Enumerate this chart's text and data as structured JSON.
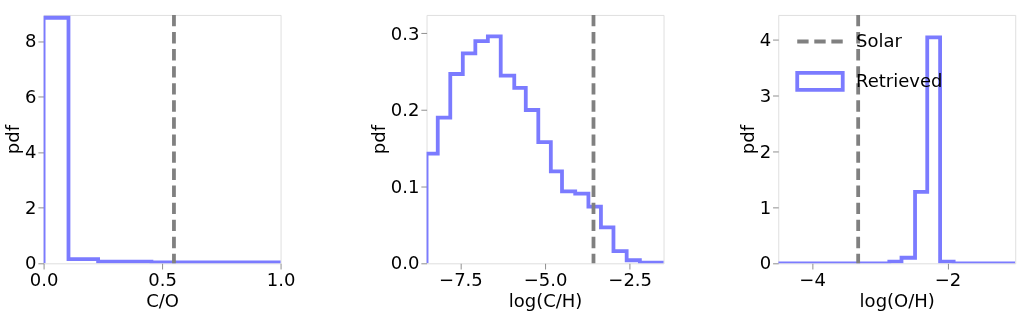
{
  "chart_data": [
    {
      "type": "histogram",
      "xlabel": "C/O",
      "ylabel": "pdf",
      "bins": [
        0,
        0.105,
        0.23,
        0.455,
        1.0
      ],
      "series": [
        {
          "color": "#7b7bff",
          "values": [
            8.85,
            0.15,
            0.06,
            0.03
          ]
        }
      ],
      "xlim": [
        0,
        1.0
      ],
      "xticks": [
        {
          "value": 0,
          "label": "0.0"
        },
        0.5,
        {
          "value": 1.0,
          "label": "1.0"
        }
      ],
      "ylim": [
        0,
        8.95
      ],
      "yticks": [
        0,
        2,
        4,
        6,
        8
      ],
      "ref_lines": [
        {
          "axis": "x",
          "value": 0.55,
          "color": "#808080",
          "line_style": "dashed"
        }
      ],
      "grid": false,
      "legend": false
    },
    {
      "type": "histogram",
      "xlabel": "log(C/H)",
      "ylabel": "pdf",
      "bins": [
        -8.5,
        -8.17,
        -7.8,
        -7.43,
        -7.06,
        -6.69,
        -6.31,
        -5.91,
        -5.57,
        -5.2,
        -4.83,
        -4.5,
        -4.11,
        -3.72,
        -3.35,
        -2.98,
        -2.59,
        -2.2,
        -1.5
      ],
      "series": [
        {
          "color": "#7b7bff",
          "values": [
            0.143,
            0.19,
            0.247,
            0.274,
            0.29,
            0.296,
            0.245,
            0.229,
            0.2,
            0.158,
            0.12,
            0.094,
            0.091,
            0.074,
            0.047,
            0.016,
            0.004,
            0.001
          ]
        }
      ],
      "xlim": [
        -8.5,
        -1.5
      ],
      "xticks": [
        {
          "value": -7.5,
          "label": "−7.5"
        },
        {
          "value": -5.0,
          "label": "−5.0"
        },
        {
          "value": -2.5,
          "label": "−2.5"
        }
      ],
      "ylim": [
        0,
        0.324
      ],
      "yticks": [
        {
          "value": 0,
          "label": "0.0"
        },
        0.1,
        0.2,
        0.3
      ],
      "ref_lines": [
        {
          "axis": "x",
          "value": -3.57,
          "color": "#808080",
          "line_style": "dashed"
        }
      ],
      "grid": false,
      "legend": false
    },
    {
      "type": "histogram",
      "xlabel": "log(O/H)",
      "ylabel": "pdf",
      "bins": [
        -4.5,
        -2.86,
        -2.68,
        -2.48,
        -2.3,
        -2.11,
        -1.91,
        -1.0
      ],
      "series": [
        {
          "name": "Retrieved",
          "color": "#7b7bff",
          "values": [
            0,
            0.03,
            0.1,
            1.28,
            4.05,
            0.03,
            0
          ]
        }
      ],
      "xlim": [
        -4.5,
        -1.0
      ],
      "xticks": [
        {
          "value": -4,
          "label": "−4"
        },
        {
          "value": -2,
          "label": "−2"
        }
      ],
      "ylim": [
        0,
        4.45
      ],
      "yticks": [
        0,
        1,
        2,
        3,
        4
      ],
      "ref_lines": [
        {
          "axis": "x",
          "value": -3.32,
          "label": "Solar",
          "color": "#808080",
          "line_style": "dashed"
        }
      ],
      "grid": false,
      "legend": "top left"
    }
  ]
}
